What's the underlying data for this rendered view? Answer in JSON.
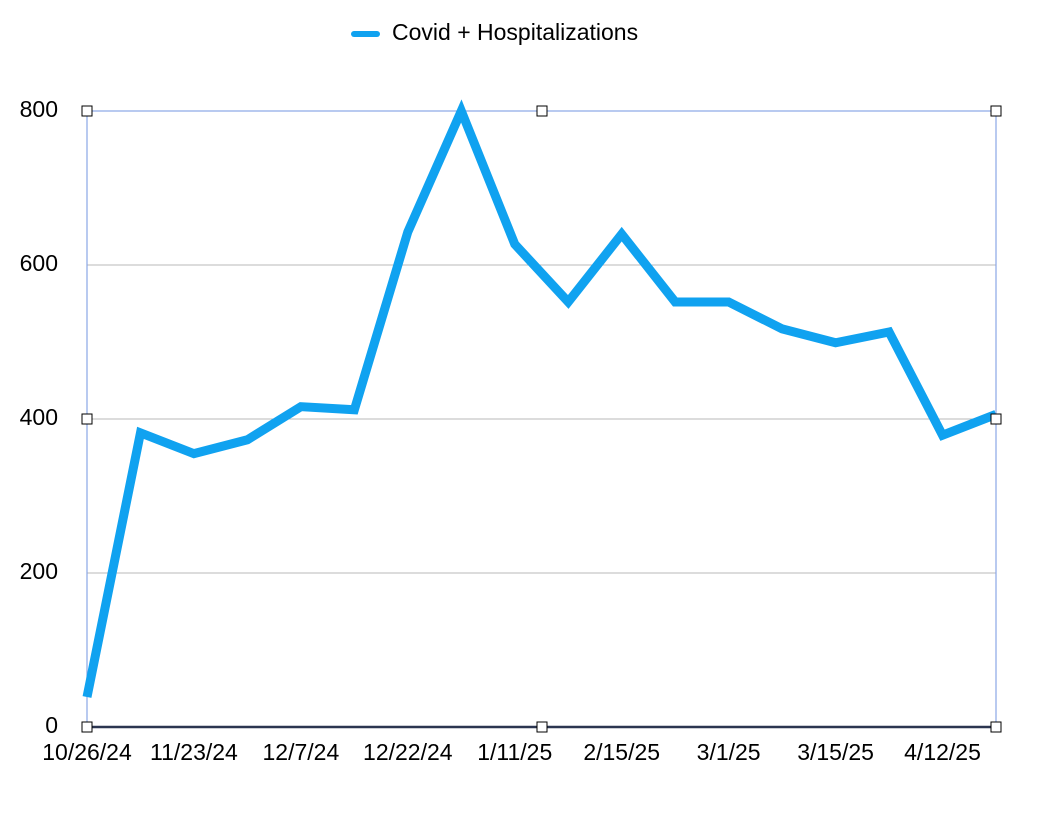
{
  "chart_data": {
    "type": "line",
    "categories": [
      "10/26/24",
      null,
      "11/23/24",
      null,
      "12/7/24",
      null,
      "12/22/24",
      null,
      "1/11/25",
      null,
      "2/15/25",
      null,
      "3/1/25",
      null,
      "3/15/25",
      null,
      "4/12/25",
      null
    ],
    "series": [
      {
        "name": "Covid + Hospitalizations",
        "color": "#10a2f0",
        "values": [
          39,
          382,
          355,
          373,
          416,
          412,
          643,
          800,
          627,
          552,
          640,
          552,
          552,
          517,
          499,
          513,
          379,
          406
        ]
      }
    ],
    "ylim": [
      0,
      800
    ],
    "yticks": [
      0,
      200,
      400,
      600,
      800
    ],
    "grid": true,
    "legend": "top"
  }
}
